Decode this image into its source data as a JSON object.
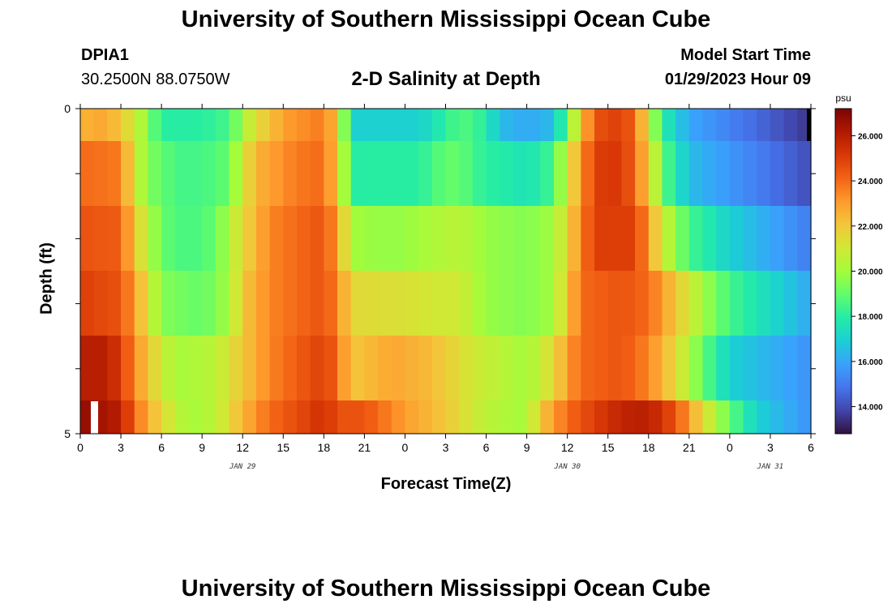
{
  "header": {
    "title": "University of Southern Mississippi Ocean Cube",
    "station_id": "DPIA1",
    "coordinates": "30.2500N  88.0750W",
    "chart_title": "2-D Salinity at Depth",
    "model_start_label": "Model Start Time",
    "model_start_value": "01/29/2023 Hour 09"
  },
  "footer": {
    "title": "University of Southern Mississippi Ocean Cube"
  },
  "colors": {
    "colormap": [
      "#30123b",
      "#4145ab",
      "#4675ed",
      "#39a2fc",
      "#1bcfd4",
      "#24eca6",
      "#61fc6c",
      "#a4fc3b",
      "#d1e834",
      "#f3c63a",
      "#fe9b2d",
      "#f36315",
      "#d93806",
      "#b11901",
      "#7a0402"
    ]
  },
  "chart_data": {
    "type": "heatmap",
    "xlabel": "Forecast Time(Z)",
    "ylabel": "Depth (ft)",
    "colorbar_unit": "psu",
    "colorbar_ticks": [
      "14.000",
      "16.000",
      "18.000",
      "20.000",
      "22.000",
      "24.000",
      "26.000"
    ],
    "colorbar_range": [
      12.8,
      27.2
    ],
    "x_tick_labels": [
      "0",
      "3",
      "6",
      "9",
      "12",
      "15",
      "18",
      "21",
      "0",
      "3",
      "6",
      "9",
      "12",
      "15",
      "18",
      "21",
      "0",
      "3",
      "6"
    ],
    "x_range_hours": [
      0,
      54
    ],
    "date_labels": [
      {
        "text": "JAN 29",
        "hour": 12
      },
      {
        "text": "JAN 30",
        "hour": 36
      },
      {
        "text": "JAN 31",
        "hour": 51
      }
    ],
    "y_tick_labels": [
      "0",
      "5"
    ],
    "y_range": [
      0,
      5
    ],
    "depth_rows": 5,
    "profiles": [
      [
        [
          0,
          22.5
        ],
        [
          2,
          22.8
        ],
        [
          4,
          21
        ],
        [
          5,
          19.5
        ],
        [
          6,
          18
        ],
        [
          9,
          18
        ],
        [
          11,
          18.5
        ],
        [
          12,
          20
        ],
        [
          13,
          21.5
        ],
        [
          14,
          22
        ],
        [
          15,
          23
        ],
        [
          18,
          23.7
        ],
        [
          19,
          22
        ],
        [
          20,
          17
        ],
        [
          25,
          17
        ],
        [
          27,
          18
        ],
        [
          28,
          18.8
        ],
        [
          30,
          18
        ],
        [
          31,
          16.5
        ],
        [
          33,
          16
        ],
        [
          35,
          16.5
        ],
        [
          36,
          19
        ],
        [
          37,
          22
        ],
        [
          38,
          24.5
        ],
        [
          40,
          25
        ],
        [
          41,
          24
        ],
        [
          42,
          21
        ],
        [
          43,
          18
        ],
        [
          45,
          16
        ],
        [
          54,
          13.5
        ]
      ],
      [
        [
          0,
          24
        ],
        [
          3,
          23.7
        ],
        [
          4,
          21
        ],
        [
          5,
          19.5
        ],
        [
          7,
          18.5
        ],
        [
          9,
          18.5
        ],
        [
          11,
          19
        ],
        [
          12,
          21
        ],
        [
          13,
          22.5
        ],
        [
          16,
          23.7
        ],
        [
          18,
          24
        ],
        [
          19,
          22
        ],
        [
          20,
          18
        ],
        [
          25,
          18
        ],
        [
          27,
          19
        ],
        [
          28,
          19
        ],
        [
          30,
          18
        ],
        [
          31,
          18
        ],
        [
          33,
          17.5
        ],
        [
          35,
          18.5
        ],
        [
          36,
          21
        ],
        [
          37,
          23
        ],
        [
          38,
          25
        ],
        [
          40,
          25.2
        ],
        [
          41,
          24
        ],
        [
          42,
          22
        ],
        [
          43,
          19
        ],
        [
          45,
          16.5
        ],
        [
          54,
          14
        ]
      ],
      [
        [
          0,
          24.5
        ],
        [
          3,
          24.3
        ],
        [
          4,
          22
        ],
        [
          6,
          19
        ],
        [
          8,
          18.5
        ],
        [
          10,
          19
        ],
        [
          12,
          21.5
        ],
        [
          14,
          23.5
        ],
        [
          18,
          24.5
        ],
        [
          19,
          23
        ],
        [
          20,
          20
        ],
        [
          22,
          19.8
        ],
        [
          24,
          19.8
        ],
        [
          26,
          20.2
        ],
        [
          28,
          20.5
        ],
        [
          30,
          19.8
        ],
        [
          33,
          19.5
        ],
        [
          35,
          20
        ],
        [
          36,
          21.5
        ],
        [
          37,
          23.5
        ],
        [
          38,
          25
        ],
        [
          41,
          25
        ],
        [
          42,
          23
        ],
        [
          43,
          21
        ],
        [
          45,
          18.5
        ],
        [
          48,
          17
        ],
        [
          54,
          15
        ]
      ],
      [
        [
          0,
          25
        ],
        [
          3,
          24.5
        ],
        [
          4,
          23
        ],
        [
          6,
          19.5
        ],
        [
          9,
          19
        ],
        [
          11,
          20
        ],
        [
          12,
          22
        ],
        [
          14,
          23.5
        ],
        [
          18,
          24.5
        ],
        [
          19,
          23.5
        ],
        [
          20,
          21.5
        ],
        [
          24,
          21.3
        ],
        [
          26,
          21
        ],
        [
          28,
          21
        ],
        [
          30,
          19.8
        ],
        [
          33,
          19.5
        ],
        [
          35,
          20
        ],
        [
          36,
          22
        ],
        [
          37,
          24
        ],
        [
          40,
          24.5
        ],
        [
          42,
          24
        ],
        [
          44,
          22
        ],
        [
          46,
          20
        ],
        [
          48,
          18.5
        ],
        [
          54,
          16
        ]
      ],
      [
        [
          0,
          26
        ],
        [
          2,
          26
        ],
        [
          3,
          25
        ],
        [
          5,
          22
        ],
        [
          7,
          20
        ],
        [
          10,
          20.5
        ],
        [
          12,
          22
        ],
        [
          14,
          23.5
        ],
        [
          18,
          25
        ],
        [
          19,
          24
        ],
        [
          20,
          22
        ],
        [
          23,
          22.8
        ],
        [
          26,
          22.3
        ],
        [
          29,
          21
        ],
        [
          31,
          20.5
        ],
        [
          33,
          20
        ],
        [
          35,
          21.5
        ],
        [
          36,
          23
        ],
        [
          37,
          24
        ],
        [
          40,
          24.5
        ],
        [
          42,
          23.5
        ],
        [
          44,
          21.5
        ],
        [
          46,
          19
        ],
        [
          48,
          17
        ],
        [
          54,
          15.5
        ]
      ]
    ],
    "bottom_row_profile": [
      [
        0,
        26.8
      ],
      [
        3,
        26
      ],
      [
        4,
        24
      ],
      [
        6,
        21.5
      ],
      [
        8,
        20
      ],
      [
        10,
        20.5
      ],
      [
        12,
        22.5
      ],
      [
        14,
        24
      ],
      [
        17,
        25
      ],
      [
        18,
        25.5
      ],
      [
        19,
        24.5
      ],
      [
        21,
        24.5
      ],
      [
        24,
        23
      ],
      [
        27,
        22
      ],
      [
        30,
        20.5
      ],
      [
        33,
        20
      ],
      [
        34,
        22
      ],
      [
        36,
        24
      ],
      [
        38,
        25
      ],
      [
        40,
        25.8
      ],
      [
        42,
        26
      ],
      [
        44,
        24.5
      ],
      [
        46,
        21.5
      ],
      [
        48,
        19
      ],
      [
        50,
        17
      ],
      [
        54,
        15.5
      ]
    ]
  }
}
